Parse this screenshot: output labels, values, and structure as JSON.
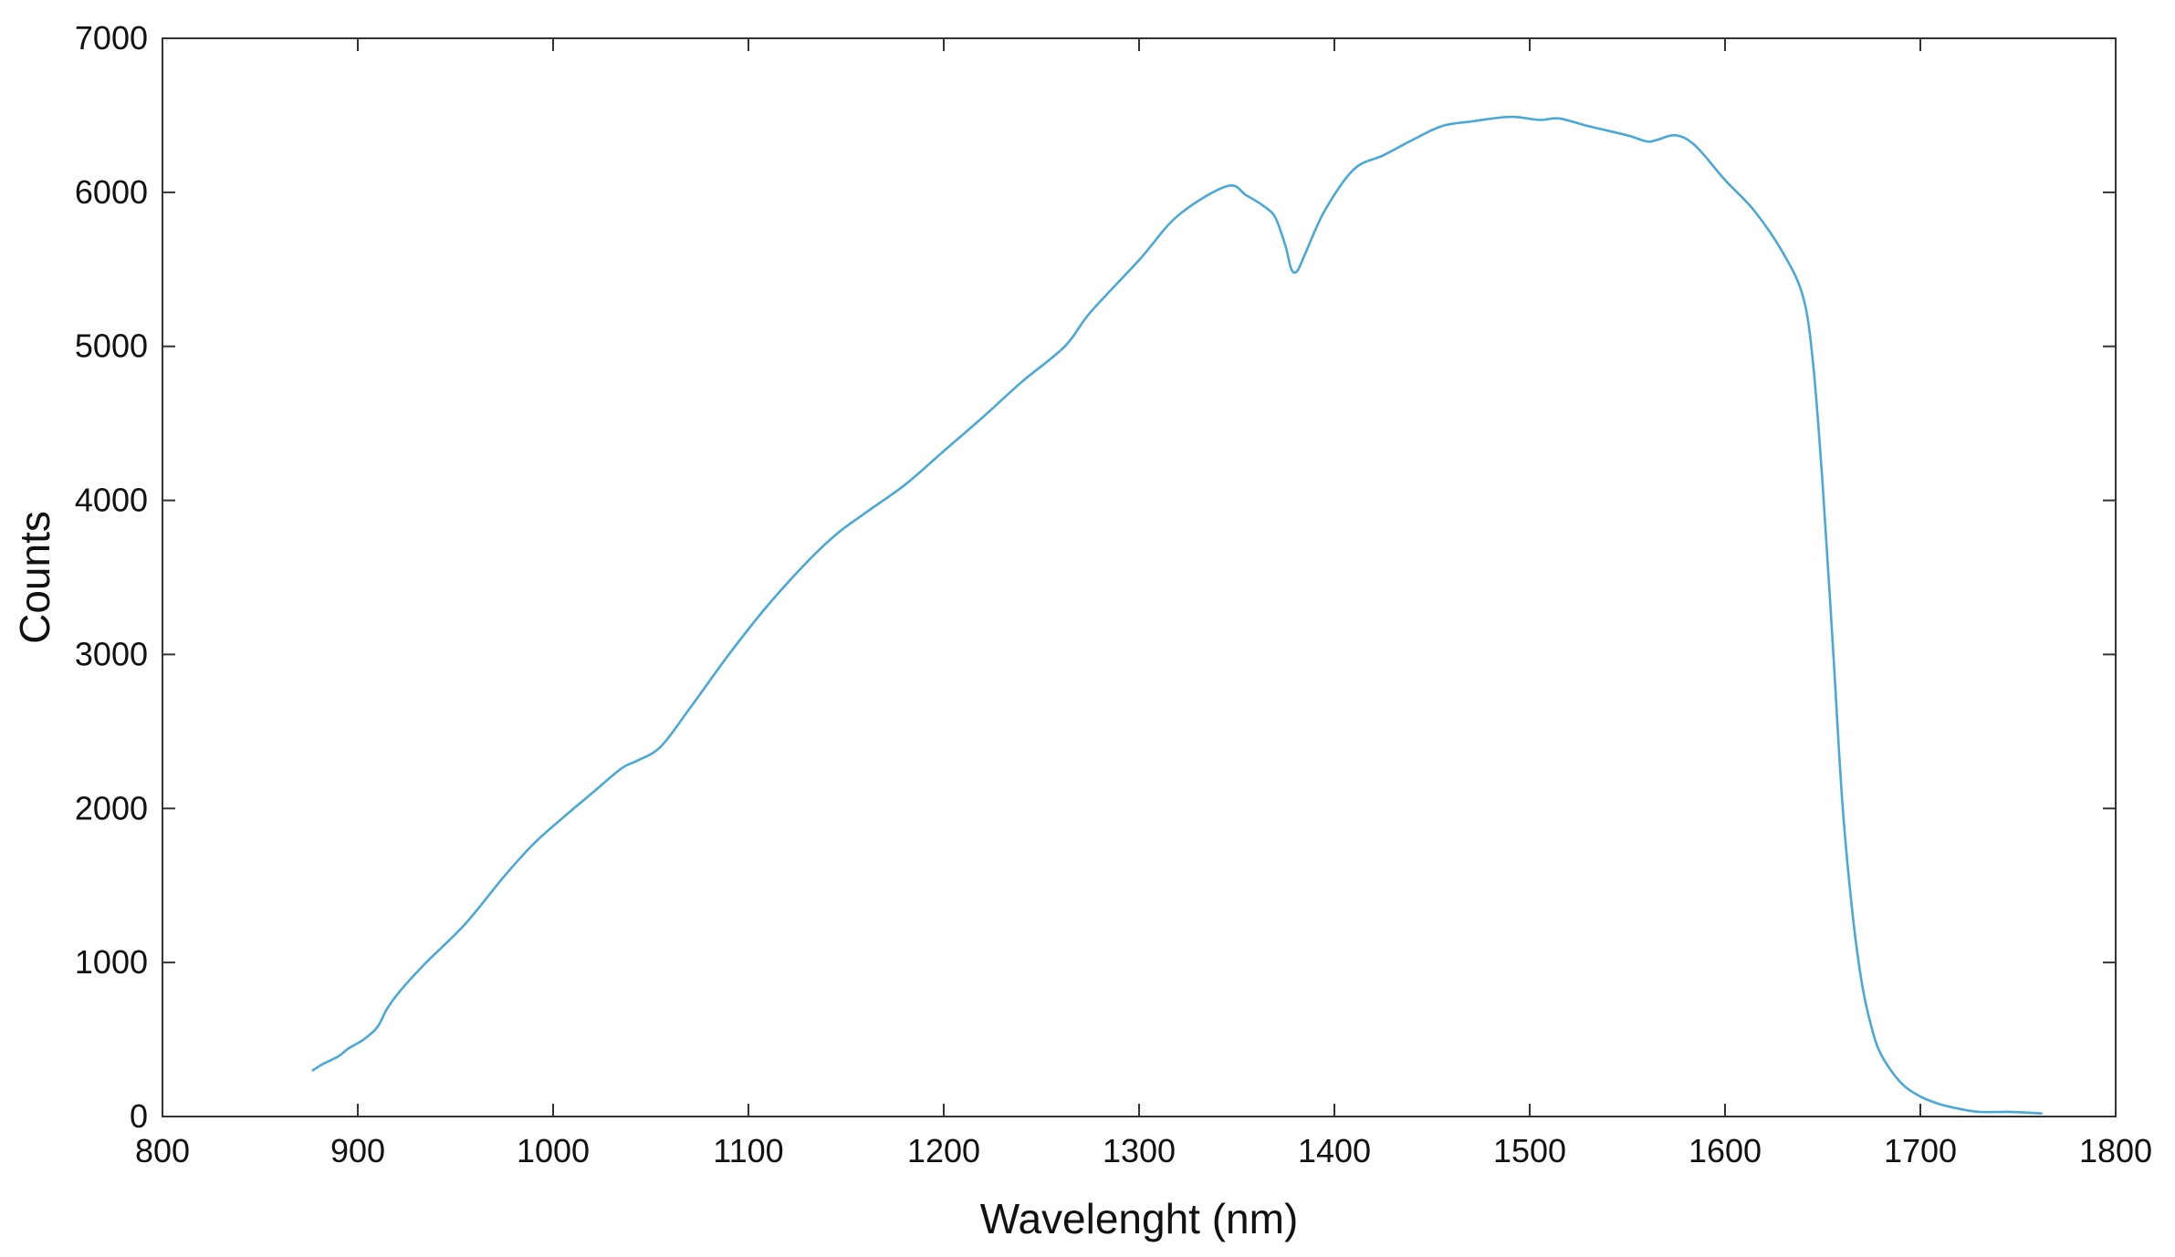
{
  "chart_data": {
    "type": "line",
    "title": "",
    "xlabel": "Wavelenght (nm)",
    "ylabel": "Counts",
    "xlim": [
      800,
      1800
    ],
    "ylim": [
      0,
      7000
    ],
    "xticks": [
      800,
      900,
      1000,
      1100,
      1200,
      1300,
      1400,
      1500,
      1600,
      1700,
      1800
    ],
    "yticks": [
      0,
      1000,
      2000,
      3000,
      4000,
      5000,
      6000,
      7000
    ],
    "grid": false,
    "legend": "none",
    "colors": {
      "line": "#4aa8d8",
      "axes": "#333333",
      "background": "#ffffff"
    },
    "series": [
      {
        "x": [
          877,
          882,
          890,
          895,
          903,
          910,
          915,
          922,
          935,
          955,
          975,
          990,
          1005,
          1020,
          1035,
          1043,
          1055,
          1070,
          1090,
          1110,
          1130,
          1145,
          1160,
          1180,
          1200,
          1220,
          1240,
          1262,
          1275,
          1300,
          1320,
          1345,
          1355,
          1365,
          1370,
          1375,
          1378,
          1381,
          1385,
          1395,
          1410,
          1425,
          1440,
          1455,
          1470,
          1490,
          1505,
          1515,
          1530,
          1550,
          1560,
          1565,
          1575,
          1585,
          1600,
          1615,
          1630,
          1640,
          1645,
          1650,
          1655,
          1660,
          1665,
          1670,
          1675,
          1680,
          1690,
          1700,
          1710,
          1720,
          1730,
          1745,
          1755,
          1762
        ],
        "y": [
          300,
          340,
          390,
          440,
          500,
          580,
          700,
          820,
          1000,
          1250,
          1560,
          1770,
          1940,
          2100,
          2260,
          2310,
          2400,
          2650,
          3000,
          3320,
          3600,
          3780,
          3920,
          4100,
          4320,
          4540,
          4770,
          5000,
          5220,
          5560,
          5850,
          6040,
          5980,
          5900,
          5830,
          5650,
          5500,
          5490,
          5600,
          5880,
          6150,
          6240,
          6340,
          6430,
          6460,
          6490,
          6470,
          6480,
          6430,
          6370,
          6330,
          6340,
          6370,
          6300,
          6080,
          5880,
          5600,
          5320,
          4900,
          4100,
          3100,
          2050,
          1350,
          870,
          580,
          400,
          220,
          130,
          80,
          50,
          30,
          30,
          25,
          20
        ]
      }
    ]
  }
}
